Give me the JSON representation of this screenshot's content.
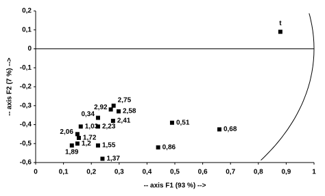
{
  "chart_data": {
    "type": "scatter",
    "x_label": "-- axis F1 (93 %) -->",
    "y_label": "-- axis F2 (7 %) -->",
    "x": [
      0.879,
      0.28,
      0.27,
      0.298,
      0.224,
      0.278,
      0.224,
      0.162,
      0.15,
      0.155,
      0.15,
      0.13,
      0.224,
      0.24,
      0.44,
      0.49,
      0.66
    ],
    "values": [
      0.09,
      -0.3,
      -0.32,
      -0.33,
      -0.364,
      -0.38,
      -0.41,
      -0.41,
      -0.45,
      -0.47,
      -0.5,
      -0.51,
      -0.51,
      -0.58,
      -0.52,
      -0.39,
      -0.425
    ],
    "labels": [
      "t",
      "2,75",
      "2,92",
      "2,58",
      "0,34",
      "2,41",
      "2,23",
      "1,03",
      "2,06",
      "1,72",
      "1,2",
      "1,89",
      "1,55",
      "1,37",
      "0,86",
      "0,51",
      "0,68"
    ],
    "color": "#000000",
    "circle_radius": 1,
    "xlim": [
      0,
      1
    ],
    "ylim": [
      -0.6,
      0.2
    ],
    "xticks": [
      0,
      {
        "value": 0.1,
        "label": "0,1"
      },
      {
        "value": 0.2,
        "label": "0,2"
      },
      {
        "value": 0.3,
        "label": "0,3"
      },
      {
        "value": 0.4,
        "label": "0,4"
      },
      {
        "value": 0.5,
        "label": "0,5"
      },
      {
        "value": 0.6,
        "label": "0,6"
      },
      {
        "value": 0.7,
        "label": "0,7"
      },
      {
        "value": 0.8,
        "label": "0,8"
      },
      {
        "value": 0.9,
        "label": "0,9"
      },
      1
    ],
    "yticks": [
      {
        "value": 0.2,
        "label": "0,2"
      },
      {
        "value": 0.1,
        "label": "0,1"
      },
      0,
      {
        "value": -0.1,
        "label": "-0,1"
      },
      {
        "value": -0.2,
        "label": "-0,2"
      },
      {
        "value": -0.3,
        "label": "-0,3"
      },
      {
        "value": -0.4,
        "label": "-0,4"
      },
      {
        "value": -0.5,
        "label": "-0,5"
      },
      {
        "value": -0.6,
        "label": "-0,6"
      }
    ]
  }
}
